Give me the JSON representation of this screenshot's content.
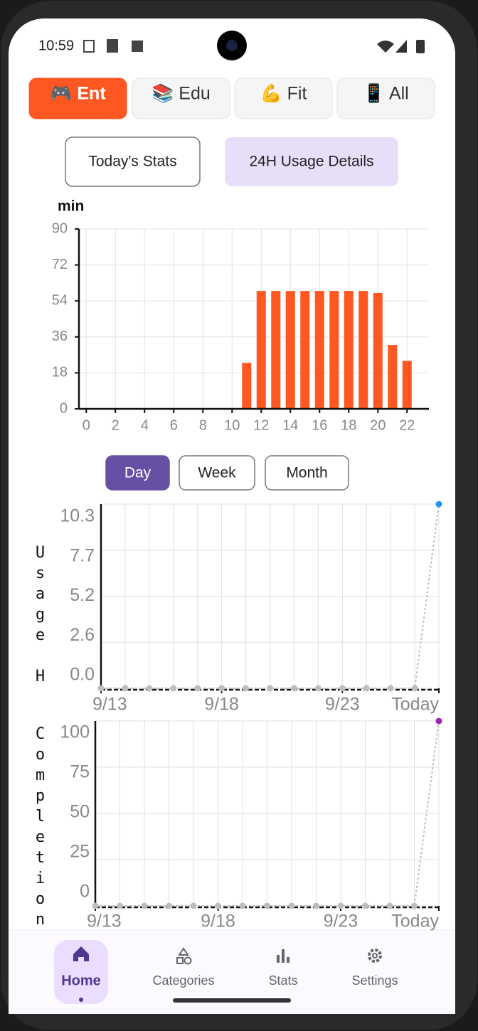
{
  "status_bar": {
    "time": "10:59"
  },
  "category_tabs": [
    {
      "label": "🎮 Ent",
      "selected": true
    },
    {
      "label": "📚 Edu",
      "selected": false
    },
    {
      "label": "💪 Fit",
      "selected": false
    },
    {
      "label": "📱 All",
      "selected": false
    }
  ],
  "view_buttons": [
    "Today's Stats",
    "24H Usage Details"
  ],
  "period_buttons": [
    {
      "label": "Day",
      "selected": true
    },
    {
      "label": "Week",
      "selected": false
    },
    {
      "label": "Month",
      "selected": false
    }
  ],
  "chart_data": [
    {
      "type": "bar",
      "y_label": "min",
      "x": [
        0,
        1,
        2,
        3,
        4,
        5,
        6,
        7,
        8,
        9,
        10,
        11,
        12,
        13,
        14,
        15,
        16,
        17,
        18,
        19,
        20,
        21,
        22,
        23
      ],
      "values": [
        0,
        0,
        0,
        0,
        0,
        0,
        0,
        0,
        0,
        0,
        0,
        23,
        59,
        59,
        59,
        59,
        59,
        59,
        59,
        59,
        58,
        32,
        24,
        0
      ],
      "color": "#FF5722",
      "xlim": [
        -0.5,
        23.5
      ],
      "ylim": [
        0,
        90
      ],
      "xticks": [
        0,
        2,
        4,
        6,
        8,
        10,
        12,
        14,
        16,
        18,
        20,
        22
      ],
      "yticks": [
        0,
        18,
        36,
        54,
        72,
        90
      ],
      "grid": true
    },
    {
      "type": "line",
      "y_label": "Usage H",
      "categories": [
        "9/13",
        null,
        null,
        null,
        null,
        "9/18",
        null,
        null,
        null,
        null,
        "9/23",
        null,
        null,
        null,
        "Today"
      ],
      "series": [
        {
          "color": "#bdbdbd",
          "highlight_color": "#2196F3",
          "values": [
            0,
            0,
            0,
            0,
            0,
            0,
            0,
            0,
            0,
            0,
            0,
            0,
            0,
            0,
            10.3
          ]
        }
      ],
      "ylim": [
        0,
        10.3
      ],
      "yticks": [
        {
          "value": 0,
          "label": "0.0"
        },
        {
          "value": 2.575,
          "label": "2.6"
        },
        {
          "value": 5.15,
          "label": "5.2"
        },
        {
          "value": 7.725,
          "label": "7.7"
        },
        10.3
      ],
      "grid": true
    },
    {
      "type": "line",
      "y_label": "Completion",
      "categories": [
        "9/13",
        null,
        null,
        null,
        null,
        "9/18",
        null,
        null,
        null,
        null,
        "9/23",
        null,
        null,
        null,
        "Today"
      ],
      "series": [
        {
          "color": "#bdbdbd",
          "highlight_color": "#9C27B0",
          "values": [
            0,
            0,
            0,
            0,
            0,
            0,
            0,
            0,
            0,
            0,
            0,
            0,
            0,
            0,
            100
          ]
        }
      ],
      "ylim": [
        0,
        100
      ],
      "yticks": [
        0,
        25,
        50,
        75,
        100
      ],
      "grid": true
    }
  ],
  "nav": [
    {
      "label": "Home",
      "selected": true
    },
    {
      "label": "Categories",
      "selected": false
    },
    {
      "label": "Stats",
      "selected": false
    },
    {
      "label": "Settings",
      "selected": false
    }
  ]
}
